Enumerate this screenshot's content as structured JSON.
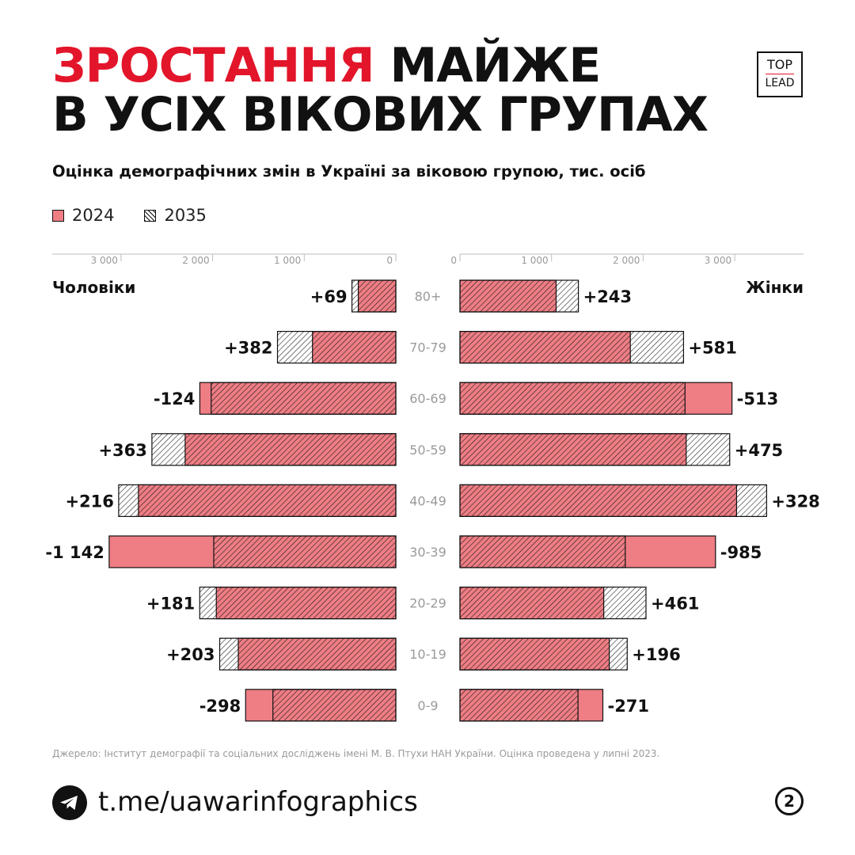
{
  "header": {
    "title_accent": "ЗРОСТАННЯ",
    "title_rest_line1": "МАЙЖЕ",
    "title_line2": "В УСІХ ВІКОВИХ ГРУПАХ",
    "logo_line1": "TOP",
    "logo_line2": "LEAD",
    "subtitle": "Оцінка демографічних змін в Україні за віковою групою, тис. осіб"
  },
  "legend": [
    {
      "label": "2024"
    },
    {
      "label": "2035"
    }
  ],
  "colors": {
    "accent": "#e3152a",
    "bar_2024": "#ee7d84",
    "hatch": "#111111"
  },
  "chart_data": {
    "type": "bar",
    "orientation": "horizontal-butterfly",
    "title": "",
    "categories": [
      "80+",
      "70-79",
      "60-69",
      "50-59",
      "40-49",
      "30-39",
      "20-29",
      "10-19",
      "0-9"
    ],
    "panels": [
      {
        "name": "Чоловіки",
        "side": "left",
        "axis_ticks": [
          "3 000",
          "2 000",
          "1 000",
          "0"
        ],
        "xlim": [
          0,
          3800
        ],
        "series": [
          {
            "name": "2024",
            "values": [
              410,
              910,
              2140,
              2300,
              2810,
              3130,
              1960,
              1720,
              1640
            ]
          },
          {
            "name": "2035",
            "values": [
              479,
              1292,
              2016,
              2663,
              3026,
              1988,
              2141,
              1923,
              1342
            ]
          }
        ],
        "change_labels": [
          "+69",
          "+382",
          "-124",
          "+363",
          "+216",
          "-1 142",
          "+181",
          "+203",
          "-298"
        ]
      },
      {
        "name": "Жінки",
        "side": "right",
        "axis_ticks": [
          "0",
          "1 000",
          "2 000",
          "3 000"
        ],
        "xlim": [
          0,
          3800
        ],
        "series": [
          {
            "name": "2024",
            "values": [
              1050,
              1860,
              2970,
              2470,
              3020,
              2790,
              1570,
              1630,
              1560
            ]
          },
          {
            "name": "2035",
            "values": [
              1293,
              2441,
              2457,
              2945,
              3348,
              1805,
              2031,
              1826,
              1289
            ]
          }
        ],
        "change_labels": [
          "+243",
          "+581",
          "-513",
          "+475",
          "+328",
          "-985",
          "+461",
          "+196",
          "-271"
        ]
      }
    ],
    "legend_position": "top-left",
    "grid": false
  },
  "footer": {
    "source": "Джерело: Інститут демографії та соціальних досліджень імені М. В. Птухи НАН України. Оцінка проведена у липні 2023.",
    "link": "t.me/uawarinfographics",
    "page_number": "2"
  }
}
